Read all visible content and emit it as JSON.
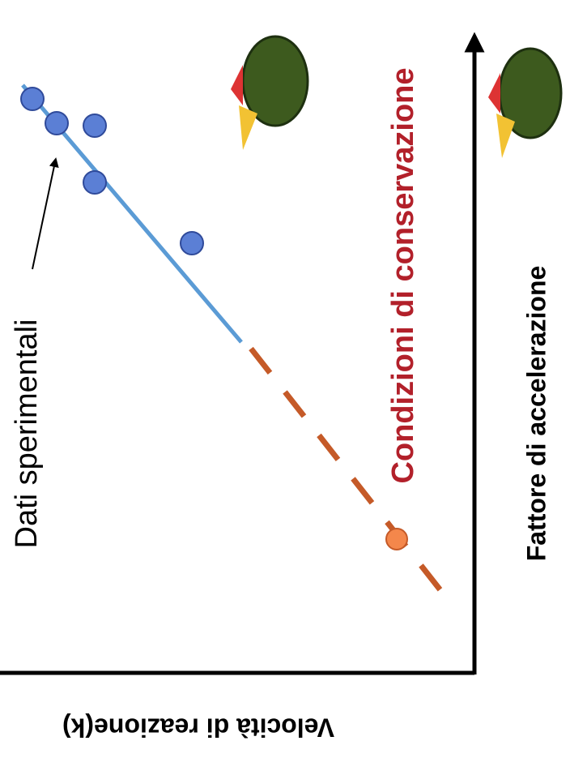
{
  "labels": {
    "experimental_data": "Dati sperimentali",
    "storage_conditions": "Condizioni di conservazione",
    "x_axis": "Fattore di accelerazione",
    "y_axis": "Velocità di reazione(k)"
  }
}
